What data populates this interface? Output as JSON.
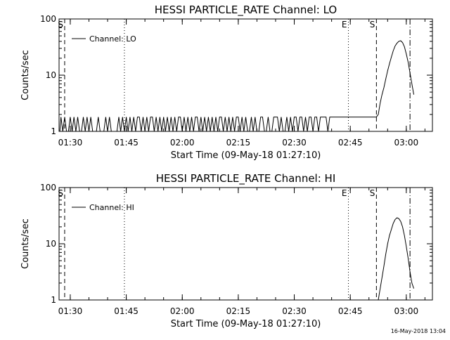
{
  "page": {
    "date_stamp": "16-May-2018 13:04"
  },
  "chart_data": [
    {
      "type": "line",
      "title": "HESSI PARTICLE_RATE Channel: LO",
      "xlabel": "Start Time (09-May-18 01:27:10)",
      "ylabel": "Counts/sec",
      "yscale": "log",
      "ylim": [
        1,
        100
      ],
      "xlim": [
        87,
        187
      ],
      "x_ticks": [
        "01:30",
        "01:45",
        "02:00",
        "02:15",
        "02:30",
        "02:45",
        "03:00"
      ],
      "x_tick_values": [
        90,
        105,
        120,
        135,
        150,
        165,
        180
      ],
      "y_ticks": [
        "1",
        "10",
        "100"
      ],
      "legend": "Channel: LO",
      "markers": [
        {
          "label": "S",
          "x": 88.5,
          "style": "dashed"
        },
        {
          "label": "",
          "x": 104.5,
          "style": "dotted"
        },
        {
          "label": "E",
          "x": 164.5,
          "style": "dotted"
        },
        {
          "label": "S",
          "x": 172,
          "style": "dashed"
        },
        {
          "label": "",
          "x": 181,
          "style": "dashdot"
        }
      ],
      "series": [
        {
          "values": [
            [
              87.2,
              1
            ],
            [
              87.5,
              1.8
            ],
            [
              88,
              1
            ],
            [
              88.5,
              1.8
            ],
            [
              89,
              1
            ],
            [
              89.5,
              1
            ],
            [
              90,
              1.8
            ],
            [
              90.5,
              1
            ],
            [
              91,
              1.8
            ],
            [
              91.5,
              1
            ],
            [
              92,
              1.8
            ],
            [
              92.5,
              1
            ],
            [
              93,
              1
            ],
            [
              93.5,
              1.8
            ],
            [
              94,
              1
            ],
            [
              94.5,
              1.8
            ],
            [
              95,
              1
            ],
            [
              95.5,
              1.8
            ],
            [
              96,
              1
            ],
            [
              96.5,
              1
            ],
            [
              97,
              1
            ],
            [
              97.5,
              1.8
            ],
            [
              98,
              1
            ],
            [
              98.5,
              1
            ],
            [
              99,
              1
            ],
            [
              99.5,
              1.8
            ],
            [
              100,
              1
            ],
            [
              100.5,
              1.8
            ],
            [
              101,
              1
            ],
            [
              101.5,
              1
            ],
            [
              102,
              1
            ],
            [
              102.5,
              1
            ],
            [
              103,
              1.8
            ],
            [
              103.5,
              1
            ],
            [
              104,
              1.8
            ],
            [
              104.5,
              1
            ],
            [
              105,
              1.8
            ],
            [
              105.5,
              1
            ],
            [
              106,
              1.8
            ],
            [
              106.5,
              1
            ],
            [
              107,
              1.8
            ],
            [
              107.5,
              1
            ],
            [
              108,
              1.8
            ],
            [
              108.5,
              1.8
            ],
            [
              109,
              1
            ],
            [
              109.5,
              1.8
            ],
            [
              110,
              1
            ],
            [
              110.5,
              1.8
            ],
            [
              111,
              1
            ],
            [
              111.5,
              1.8
            ],
            [
              112,
              1.8
            ],
            [
              112.5,
              1
            ],
            [
              113,
              1.8
            ],
            [
              113.5,
              1
            ],
            [
              114,
              1.8
            ],
            [
              114.5,
              1
            ],
            [
              115,
              1.8
            ],
            [
              115.5,
              1
            ],
            [
              116,
              1.8
            ],
            [
              116.5,
              1
            ],
            [
              117,
              1.8
            ],
            [
              117.5,
              1
            ],
            [
              118,
              1.8
            ],
            [
              118.5,
              1
            ],
            [
              119,
              1.8
            ],
            [
              119.5,
              1.8
            ],
            [
              120,
              1
            ],
            [
              120.5,
              1.8
            ],
            [
              121,
              1
            ],
            [
              121.5,
              1.8
            ],
            [
              122,
              1
            ],
            [
              122.5,
              1.8
            ],
            [
              123,
              1
            ],
            [
              123.5,
              1.8
            ],
            [
              124,
              1.8
            ],
            [
              124.5,
              1
            ],
            [
              125,
              1.8
            ],
            [
              125.5,
              1
            ],
            [
              126,
              1.8
            ],
            [
              126.5,
              1
            ],
            [
              127,
              1.8
            ],
            [
              127.5,
              1
            ],
            [
              128,
              1.8
            ],
            [
              128.5,
              1
            ],
            [
              129,
              1.8
            ],
            [
              129.5,
              1
            ],
            [
              130,
              1.8
            ],
            [
              130.5,
              1.8
            ],
            [
              131,
              1
            ],
            [
              131.5,
              1.8
            ],
            [
              132,
              1
            ],
            [
              132.5,
              1.8
            ],
            [
              133,
              1
            ],
            [
              133.5,
              1.8
            ],
            [
              134,
              1
            ],
            [
              134.5,
              1.8
            ],
            [
              135,
              1.8
            ],
            [
              135.5,
              1
            ],
            [
              136,
              1.8
            ],
            [
              136.5,
              1
            ],
            [
              137,
              1.8
            ],
            [
              137.5,
              1
            ],
            [
              138,
              1
            ],
            [
              138.5,
              1.8
            ],
            [
              139,
              1
            ],
            [
              139.5,
              1.8
            ],
            [
              140,
              1
            ],
            [
              140.5,
              1
            ],
            [
              141,
              1.8
            ],
            [
              141.5,
              1.8
            ],
            [
              142,
              1
            ],
            [
              142.5,
              1
            ],
            [
              143,
              1.8
            ],
            [
              143.5,
              1
            ],
            [
              144,
              1
            ],
            [
              144.5,
              1.8
            ],
            [
              145,
              1.8
            ],
            [
              145.5,
              1.8
            ],
            [
              146,
              1
            ],
            [
              146.5,
              1.8
            ],
            [
              147,
              1
            ],
            [
              147.5,
              1
            ],
            [
              148,
              1.8
            ],
            [
              148.5,
              1
            ],
            [
              149,
              1.8
            ],
            [
              149.5,
              1
            ],
            [
              150,
              1.8
            ],
            [
              150.5,
              1.8
            ],
            [
              151,
              1
            ],
            [
              151.5,
              1.8
            ],
            [
              152,
              1.8
            ],
            [
              152.5,
              1
            ],
            [
              153,
              1.8
            ],
            [
              153.5,
              1
            ],
            [
              154,
              1.8
            ],
            [
              154.5,
              1.8
            ],
            [
              155,
              1
            ],
            [
              155.5,
              1.8
            ],
            [
              156,
              1.8
            ],
            [
              156.5,
              1
            ],
            [
              157,
              1.8
            ],
            [
              157.5,
              1.8
            ],
            [
              158,
              1.8
            ],
            [
              158.5,
              1.8
            ],
            [
              159,
              1
            ],
            [
              159.5,
              1.8
            ],
            [
              160,
              1.8
            ],
            [
              160.5,
              1.8
            ],
            [
              161,
              1.8
            ],
            [
              161.5,
              1.8
            ],
            [
              162,
              1.8
            ],
            [
              162.5,
              1.8
            ],
            [
              163,
              1.8
            ],
            [
              163.5,
              1.8
            ],
            [
              164,
              1.8
            ],
            [
              164.5,
              1.8
            ],
            [
              165,
              1.8
            ],
            [
              165.5,
              1.8
            ],
            [
              166,
              1.8
            ],
            [
              166.5,
              1.8
            ],
            [
              167,
              1.8
            ],
            [
              167.5,
              1.8
            ],
            [
              168,
              1.8
            ],
            [
              168.5,
              1.8
            ],
            [
              169,
              1.8
            ],
            [
              169.5,
              1.8
            ],
            [
              170,
              1.8
            ],
            [
              170.5,
              1.8
            ],
            [
              171,
              1.8
            ],
            [
              171.5,
              1.8
            ],
            [
              172,
              1.8
            ],
            [
              172.5,
              2
            ],
            [
              173,
              3.2
            ],
            [
              173.5,
              4.5
            ],
            [
              174,
              6
            ],
            [
              174.5,
              8.5
            ],
            [
              175,
              12
            ],
            [
              175.5,
              16
            ],
            [
              176,
              21
            ],
            [
              176.5,
              27
            ],
            [
              177,
              33
            ],
            [
              177.5,
              37
            ],
            [
              178,
              40
            ],
            [
              178.5,
              41
            ],
            [
              179,
              38
            ],
            [
              179.5,
              32
            ],
            [
              180,
              24
            ],
            [
              180.5,
              17
            ],
            [
              181,
              11
            ],
            [
              181.5,
              7
            ],
            [
              182,
              4.5
            ]
          ]
        }
      ]
    },
    {
      "type": "line",
      "title": "HESSI PARTICLE_RATE Channel: HI",
      "xlabel": "Start Time (09-May-18 01:27:10)",
      "ylabel": "Counts/sec",
      "yscale": "log",
      "ylim": [
        1,
        100
      ],
      "xlim": [
        87,
        187
      ],
      "x_ticks": [
        "01:30",
        "01:45",
        "02:00",
        "02:15",
        "02:30",
        "02:45",
        "03:00"
      ],
      "x_tick_values": [
        90,
        105,
        120,
        135,
        150,
        165,
        180
      ],
      "y_ticks": [
        "1",
        "10",
        "100"
      ],
      "legend": "Channel: HI",
      "markers": [
        {
          "label": "S",
          "x": 88.5,
          "style": "dashed"
        },
        {
          "label": "",
          "x": 104.5,
          "style": "dotted"
        },
        {
          "label": "E",
          "x": 164.5,
          "style": "dotted"
        },
        {
          "label": "S",
          "x": 172,
          "style": "dashed"
        },
        {
          "label": "",
          "x": 181,
          "style": "dashdot"
        }
      ],
      "series": [
        {
          "values": [
            [
              172.5,
              1
            ],
            [
              173,
              1.6
            ],
            [
              173.5,
              2.5
            ],
            [
              174,
              4
            ],
            [
              174.5,
              6.5
            ],
            [
              175,
              10
            ],
            [
              175.5,
              14
            ],
            [
              176,
              18
            ],
            [
              176.5,
              23
            ],
            [
              177,
              27
            ],
            [
              177.5,
              29
            ],
            [
              178,
              28
            ],
            [
              178.5,
              25
            ],
            [
              179,
              20
            ],
            [
              179.5,
              14
            ],
            [
              180,
              9
            ],
            [
              180.5,
              5.5
            ],
            [
              181,
              3.2
            ],
            [
              181.5,
              2
            ],
            [
              182,
              1.6
            ]
          ]
        }
      ]
    }
  ]
}
